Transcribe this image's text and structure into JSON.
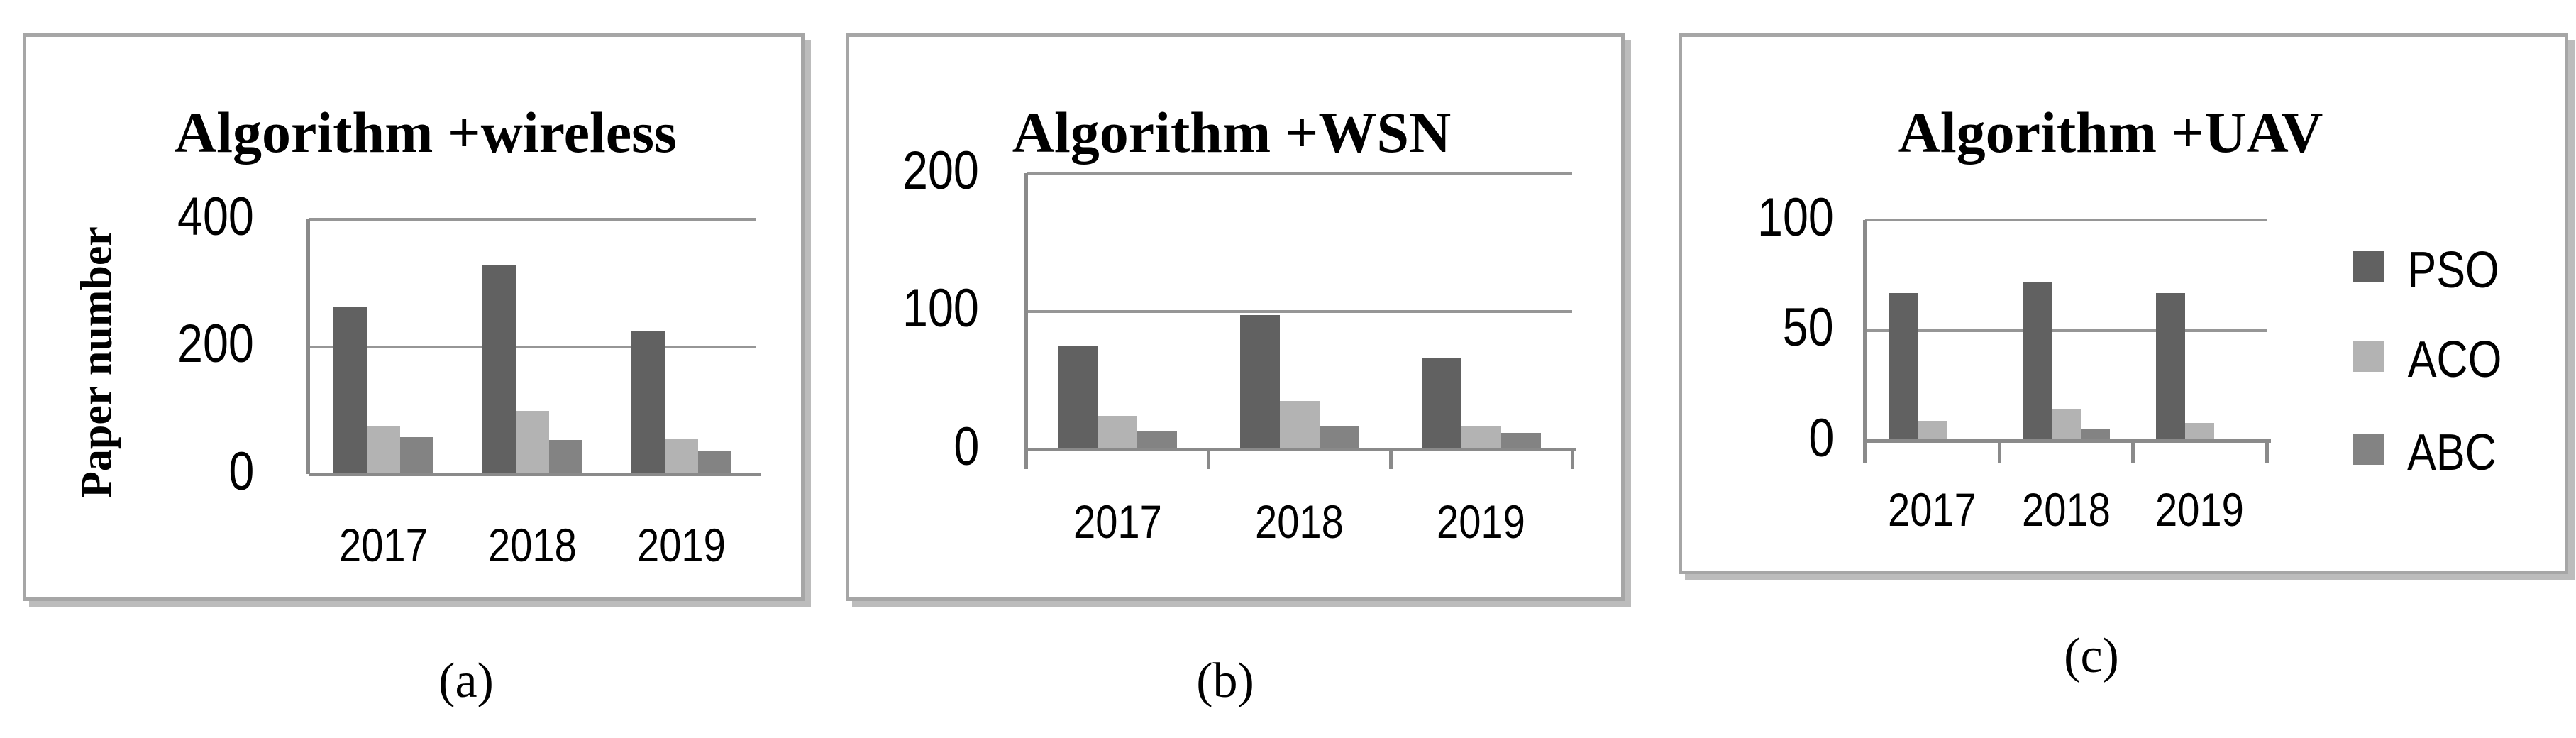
{
  "figure": {
    "captions": [
      "(a)",
      "(b)",
      "(c)"
    ]
  },
  "legend": {
    "items": [
      {
        "label": "PSO",
        "color": "#616161"
      },
      {
        "label": "ACO",
        "color": "#b3b3b3"
      },
      {
        "label": "ABC",
        "color": "#838383"
      }
    ]
  },
  "colors": {
    "pso": "#616161",
    "aco": "#b3b3b3",
    "abc": "#838383",
    "gridline": "#969696",
    "axis": "#8a8a8a",
    "panel_border": "#a6a6a6",
    "panel_shadow": "#bcbcbc"
  },
  "chart_data": [
    {
      "type": "bar",
      "title": "Algorithm +wireless",
      "ylabel": "Paper number",
      "xlabel": "",
      "categories": [
        "2017",
        "2018",
        "2019"
      ],
      "series": [
        {
          "name": "PSO",
          "values": [
            263,
            329,
            224
          ]
        },
        {
          "name": "ACO",
          "values": [
            76,
            99,
            56
          ]
        },
        {
          "name": "ABC",
          "values": [
            58,
            54,
            37
          ]
        }
      ],
      "ylim": [
        0,
        400
      ],
      "yticks": [
        0,
        200,
        400
      ],
      "grid": true,
      "legend_position": "none"
    },
    {
      "type": "bar",
      "title": "Algorithm +WSN",
      "ylabel": "",
      "xlabel": "",
      "categories": [
        "2017",
        "2018",
        "2019"
      ],
      "series": [
        {
          "name": "PSO",
          "values": [
            75,
            97,
            66
          ]
        },
        {
          "name": "ACO",
          "values": [
            24,
            35,
            17
          ]
        },
        {
          "name": "ABC",
          "values": [
            13,
            17,
            12
          ]
        }
      ],
      "ylim": [
        0,
        200
      ],
      "yticks": [
        0,
        100,
        200
      ],
      "grid": true,
      "legend_position": "none"
    },
    {
      "type": "bar",
      "title": "Algorithm +UAV",
      "ylabel": "",
      "xlabel": "",
      "categories": [
        "2017",
        "2018",
        "2019"
      ],
      "series": [
        {
          "name": "PSO",
          "values": [
            67,
            72,
            67
          ]
        },
        {
          "name": "ACO",
          "values": [
            9,
            14,
            8
          ]
        },
        {
          "name": "ABC",
          "values": [
            1,
            5,
            1
          ]
        }
      ],
      "ylim": [
        0,
        100
      ],
      "yticks": [
        0,
        50,
        100
      ],
      "grid": true,
      "legend_position": "right"
    }
  ]
}
